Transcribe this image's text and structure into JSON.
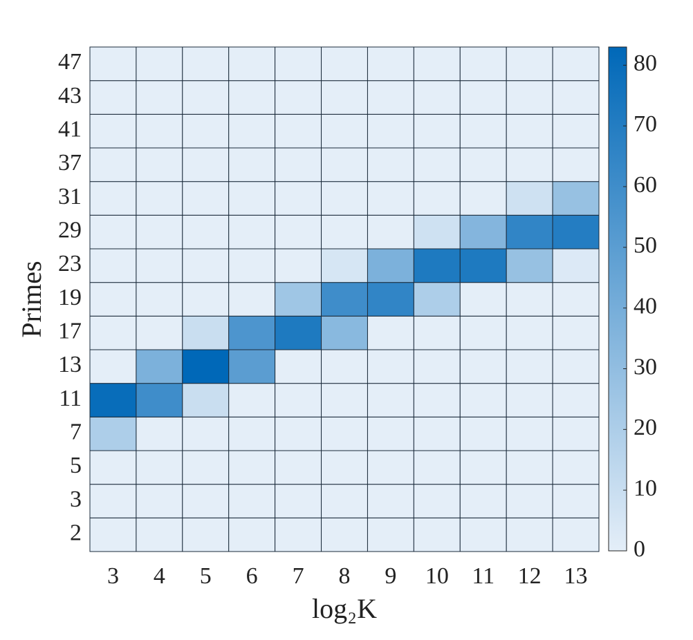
{
  "chart_data": {
    "type": "heatmap",
    "x": [
      3,
      4,
      5,
      6,
      7,
      8,
      9,
      10,
      11,
      12,
      13
    ],
    "y": [
      2,
      3,
      5,
      7,
      11,
      13,
      17,
      19,
      23,
      29,
      31,
      37,
      41,
      43,
      47
    ],
    "z": [
      [
        0,
        0,
        0,
        0,
        0,
        0,
        0,
        0,
        0,
        0,
        0
      ],
      [
        0,
        0,
        0,
        0,
        0,
        0,
        0,
        0,
        0,
        0,
        0
      ],
      [
        0,
        0,
        0,
        0,
        0,
        0,
        0,
        0,
        0,
        0,
        0
      ],
      [
        20,
        0,
        0,
        0,
        0,
        0,
        0,
        0,
        0,
        0,
        0
      ],
      [
        80,
        60,
        10,
        0,
        0,
        0,
        0,
        0,
        0,
        0,
        0
      ],
      [
        0,
        38,
        83,
        50,
        0,
        0,
        0,
        0,
        0,
        0,
        0
      ],
      [
        0,
        0,
        10,
        55,
        72,
        33,
        0,
        0,
        0,
        0,
        0
      ],
      [
        0,
        0,
        0,
        0,
        25,
        60,
        65,
        20,
        0,
        0,
        0
      ],
      [
        0,
        0,
        0,
        0,
        0,
        5,
        38,
        72,
        72,
        28,
        3
      ],
      [
        0,
        0,
        0,
        0,
        0,
        0,
        0,
        8,
        35,
        65,
        70
      ],
      [
        0,
        0,
        0,
        0,
        0,
        0,
        0,
        0,
        0,
        8,
        28
      ],
      [
        0,
        0,
        0,
        0,
        0,
        0,
        0,
        0,
        0,
        0,
        0
      ],
      [
        0,
        0,
        0,
        0,
        0,
        0,
        0,
        0,
        0,
        0,
        0
      ],
      [
        0,
        0,
        0,
        0,
        0,
        0,
        0,
        0,
        0,
        0,
        0
      ],
      [
        0,
        0,
        0,
        0,
        0,
        0,
        0,
        0,
        0,
        0,
        0
      ]
    ],
    "xlabel": "log₂K",
    "ylabel": "Primes",
    "zlim": [
      0,
      83
    ],
    "zticks": [
      0,
      10,
      20,
      30,
      40,
      50,
      60,
      70,
      80
    ],
    "colors": [
      "#e4eef8",
      "#0068b8"
    ]
  }
}
